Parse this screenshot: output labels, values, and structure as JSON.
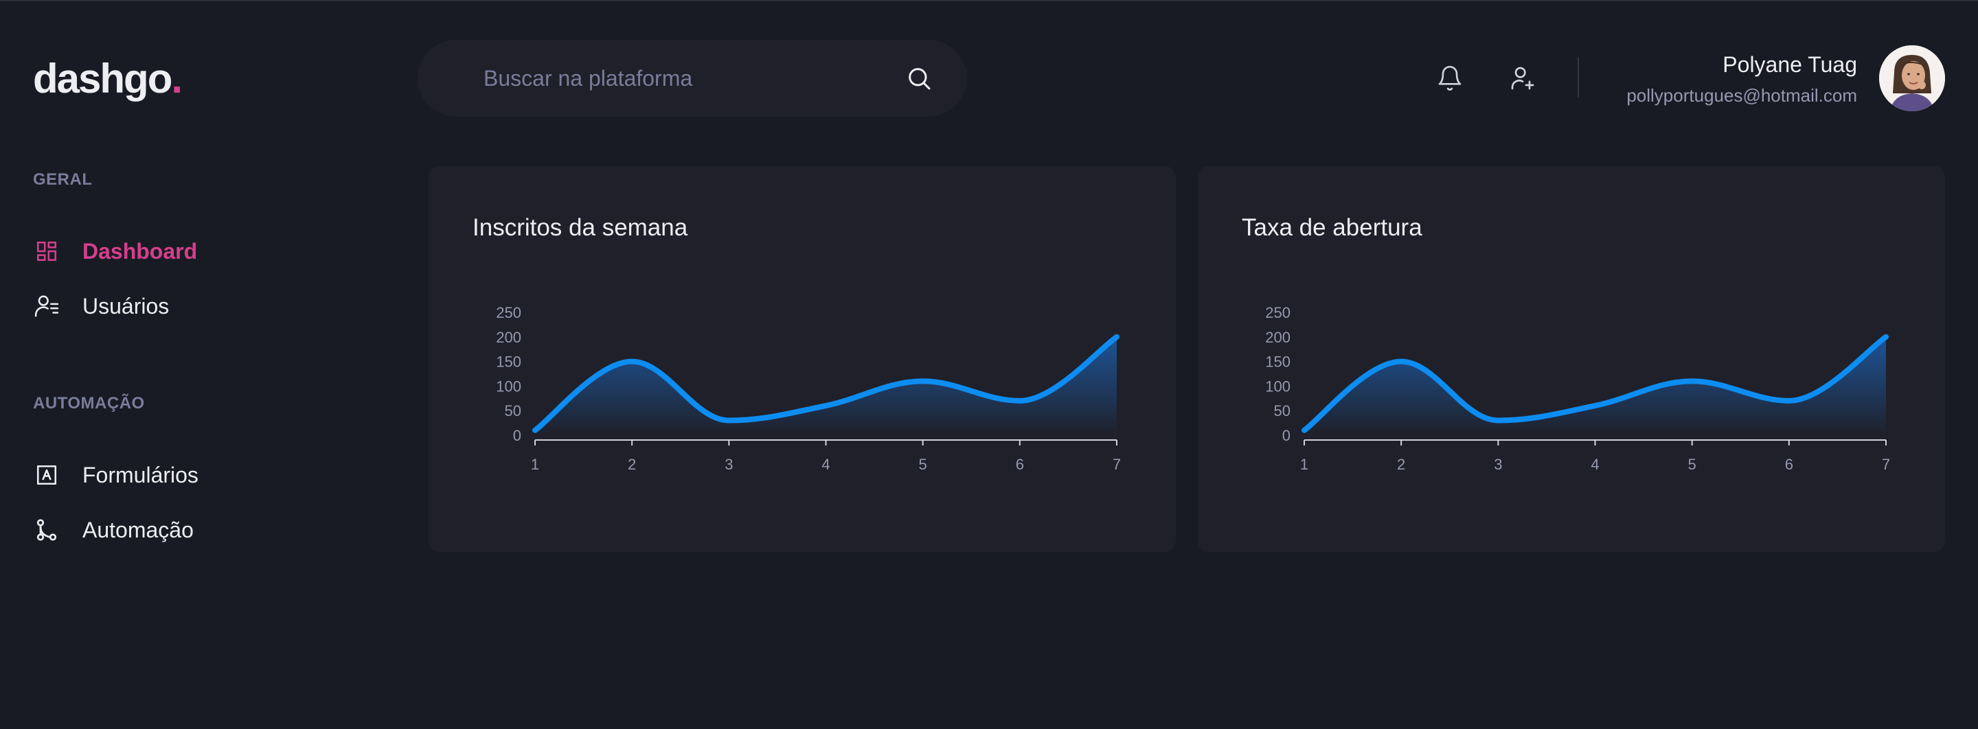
{
  "brand": {
    "name": "dashgo",
    "dot": "."
  },
  "search": {
    "placeholder": "Buscar na plataforma"
  },
  "header": {
    "icons": [
      "bell-icon",
      "user-add-icon"
    ],
    "user": {
      "name": "Polyane Tuag",
      "email": "pollyportugues@hotmail.com"
    }
  },
  "sidebar": {
    "sections": [
      {
        "title": "GERAL",
        "items": [
          {
            "label": "Dashboard",
            "icon": "dashboard-icon",
            "active": true
          },
          {
            "label": "Usuários",
            "icon": "users-icon",
            "active": false
          }
        ]
      },
      {
        "title": "AUTOMAÇÃO",
        "items": [
          {
            "label": "Formulários",
            "icon": "form-icon",
            "active": false
          },
          {
            "label": "Automação",
            "icon": "git-merge-icon",
            "active": false
          }
        ]
      }
    ]
  },
  "colors": {
    "background": "#181b23",
    "card": "#1f2029",
    "accent": "#d53f8c",
    "series": "#0d8df2",
    "muted": "#797d9a"
  },
  "cards": [
    {
      "title": "Inscritos da semana"
    },
    {
      "title": "Taxa de abertura"
    }
  ],
  "chart_data": [
    {
      "type": "area",
      "title": "Inscritos da semana",
      "x": [
        1,
        2,
        3,
        4,
        5,
        6,
        7
      ],
      "series": [
        {
          "values": [
            10,
            150,
            30,
            60,
            110,
            70,
            200
          ]
        }
      ],
      "yticks": [
        0,
        50,
        100,
        150,
        200,
        250
      ],
      "ylim": [
        0,
        250
      ],
      "grid": false,
      "smooth": true
    },
    {
      "type": "area",
      "title": "Taxa de abertura",
      "x": [
        1,
        2,
        3,
        4,
        5,
        6,
        7
      ],
      "series": [
        {
          "values": [
            10,
            150,
            30,
            60,
            110,
            70,
            200
          ]
        }
      ],
      "yticks": [
        0,
        50,
        100,
        150,
        200,
        250
      ],
      "ylim": [
        0,
        250
      ],
      "grid": false,
      "smooth": true
    }
  ]
}
